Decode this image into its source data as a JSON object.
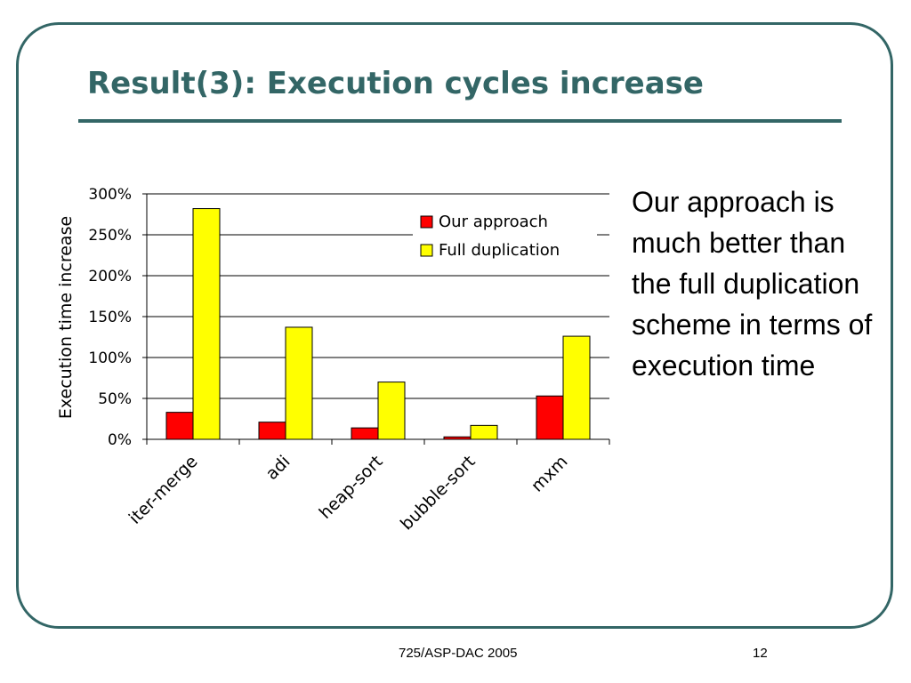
{
  "slide": {
    "title": "Result(3): Execution cycles increase",
    "side_text": "Our approach is much better than the full duplication scheme in terms of execution time",
    "footer_center": "725/ASP-DAC 2005",
    "page_number": "12"
  },
  "colors": {
    "theme": "#336666",
    "our_approach": "#ff0000",
    "full_duplication": "#ffff00"
  },
  "chart_data": {
    "type": "bar",
    "title": "",
    "xlabel": "",
    "ylabel": "Execution time increase",
    "categories": [
      "iter-merge",
      "adi",
      "heap-sort",
      "bubble-sort",
      "mxm"
    ],
    "series": [
      {
        "name": "Our approach",
        "values": [
          33,
          21,
          14,
          3,
          53
        ]
      },
      {
        "name": "Full duplication",
        "values": [
          282,
          137,
          70,
          17,
          126
        ]
      }
    ],
    "ylim": [
      0,
      300
    ],
    "yticks": [
      "0%",
      "50%",
      "100%",
      "150%",
      "200%",
      "250%",
      "300%"
    ],
    "grid": true,
    "legend_position": "top-right"
  }
}
